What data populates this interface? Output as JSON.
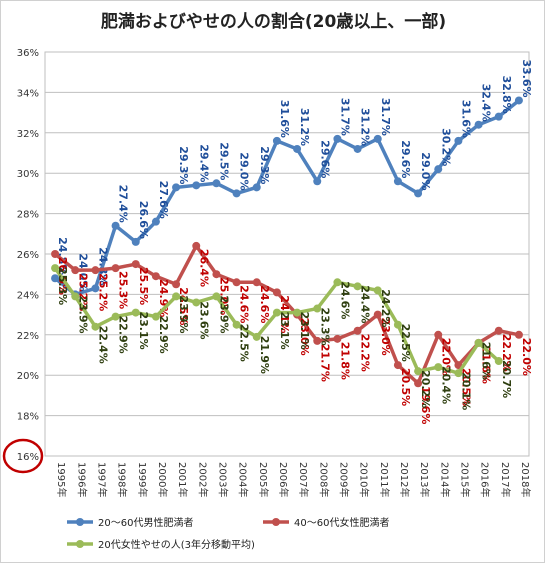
{
  "chart_data": {
    "type": "line",
    "title": "肥満およびやせの人の割合(20歳以上、一部)",
    "y_tick_labels": [
      "36%",
      "34%",
      "32%",
      "30%",
      "28%",
      "26%",
      "24%",
      "22%",
      "20%",
      "18%",
      "16%"
    ],
    "ylim": [
      16,
      36
    ],
    "grid": true,
    "categories": [
      "1995年",
      "1996年",
      "1997年",
      "1998年",
      "1999年",
      "2000年",
      "2001年",
      "2002年",
      "2003年",
      "2004年",
      "2005年",
      "2006年",
      "2007年",
      "2008年",
      "2009年",
      "2010年",
      "2011年",
      "2012年",
      "2013年",
      "2014年",
      "2015年",
      "2016年",
      "2017年",
      "2018年"
    ],
    "series": [
      {
        "name": "20～60代男性肥満者",
        "color": "#4f81bd",
        "values": [
          24.8,
          24.0,
          24.3,
          27.4,
          26.6,
          27.6,
          29.3,
          29.4,
          29.5,
          29.0,
          29.3,
          31.6,
          31.2,
          29.6,
          31.7,
          31.2,
          31.7,
          29.6,
          29.0,
          30.2,
          31.6,
          32.4,
          32.8,
          33.6
        ],
        "labels": [
          "24.8%",
          "24.0%",
          "24.3%",
          "27.4%",
          "26.6%",
          "27.6%",
          "29.3%",
          "29.4%",
          "29.5%",
          "29.0%",
          "29.3%",
          "31.6%",
          "31.2%",
          "29.6%",
          "31.7%",
          "31.2%",
          "31.7%",
          "29.6%",
          "29.0%",
          "30.2%",
          "31.6%",
          "32.4%",
          "32.8%",
          "33.6%"
        ],
        "label_color": "#1f4e9a"
      },
      {
        "name": "40～60代女性肥満者",
        "color": "#c0504d",
        "values": [
          26.0,
          25.2,
          25.2,
          25.3,
          25.5,
          24.9,
          24.5,
          26.4,
          25.0,
          24.6,
          24.6,
          24.1,
          23.0,
          21.7,
          21.8,
          22.2,
          23.0,
          20.5,
          19.6,
          22.0,
          20.5,
          21.6,
          22.2,
          22.0
        ],
        "labels": [
          "26.0%",
          "25.2%",
          "25.2%",
          "25.3%",
          "25.5%",
          "24.9%",
          "24.5%",
          "26.4%",
          "25.0%",
          "24.6%",
          "24.6%",
          "24.1%",
          "23.0%",
          "21.7%",
          "21.8%",
          "22.2%",
          "23.0%",
          "20.5%",
          "19.6%",
          "22.0%",
          "20.5%",
          "21.6%",
          "22.2%",
          "22.0%"
        ],
        "label_color": "#c00000"
      },
      {
        "name": "20代女性やせの人(3年分移動平均)",
        "color": "#9bbb59",
        "values": [
          25.3,
          23.9,
          22.4,
          22.9,
          23.1,
          22.9,
          23.9,
          23.6,
          23.9,
          22.5,
          21.9,
          23.1,
          23.1,
          23.3,
          24.6,
          24.4,
          24.2,
          22.5,
          20.2,
          20.4,
          20.1,
          21.6,
          20.7,
          null
        ],
        "labels": [
          "25.3%",
          "23.9%",
          "22.4%",
          "22.9%",
          "23.1%",
          "22.9%",
          "23.9%",
          "23.6%",
          "23.9%",
          "22.5%",
          "21.9%",
          "23.1%",
          "23.1%",
          "23.3%",
          "24.6%",
          "24.4%",
          "24.2%",
          "22.5%",
          "20.2%",
          "20.4%",
          "20.1%",
          "21.6%",
          "20.7%",
          ""
        ],
        "label_color": "#2f3f10"
      }
    ],
    "legend_position": "bottom"
  },
  "highlight": {
    "label": "16%",
    "color": "#c00000"
  }
}
